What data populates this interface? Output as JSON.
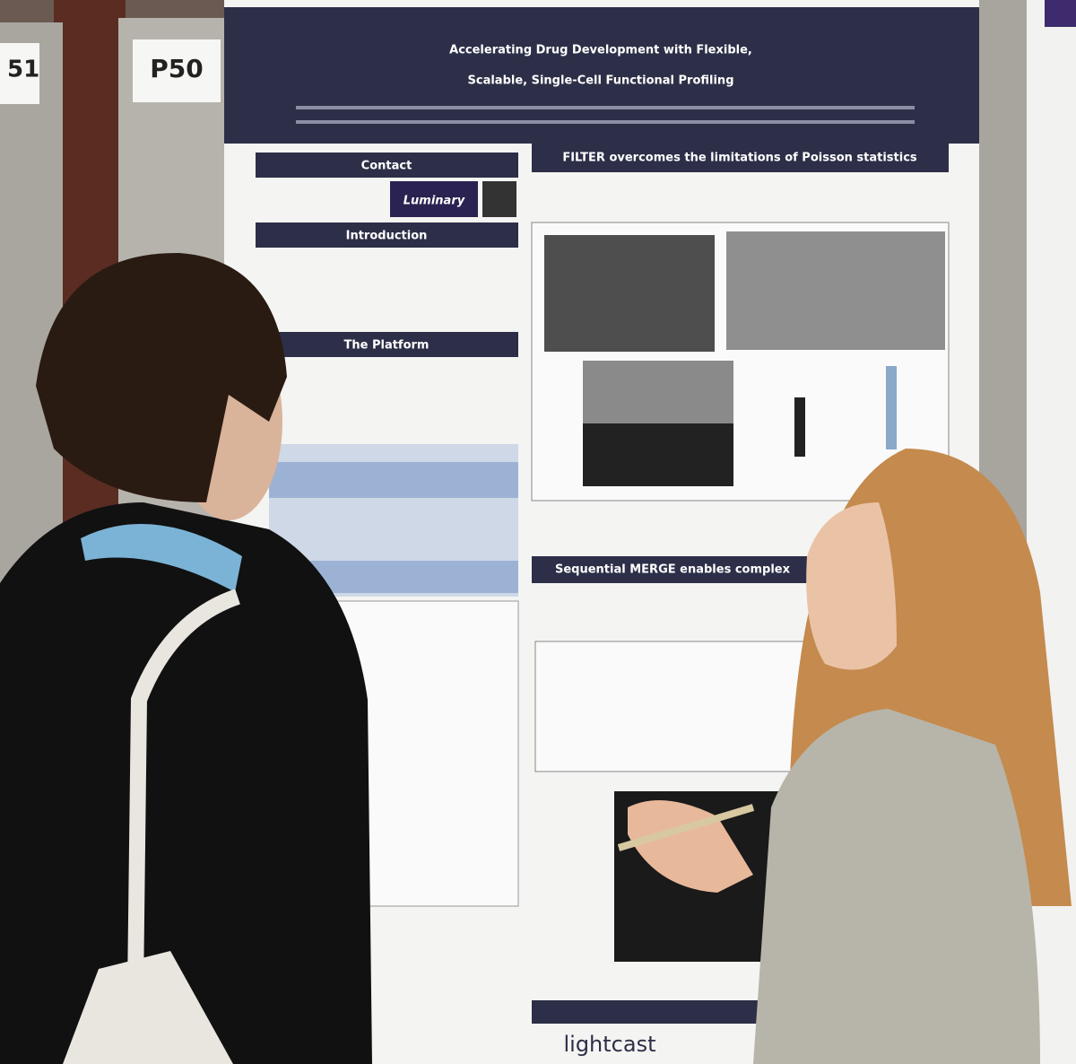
{
  "boards": {
    "left": "51",
    "center": "P50"
  },
  "poster": {
    "title": [
      "Accelerating Drug Development with Flexible,",
      "Scalable, Single-Cell Functional Profiling"
    ],
    "sections": {
      "contact": "Contact",
      "introduction": "Introduction",
      "platform": "The Platform",
      "filter": "FILTER overcomes the limitations of Poisson statistics",
      "merge": "Sequential MERGE enables complex"
    },
    "logo": "Luminary",
    "sponsor": "lightcast"
  }
}
